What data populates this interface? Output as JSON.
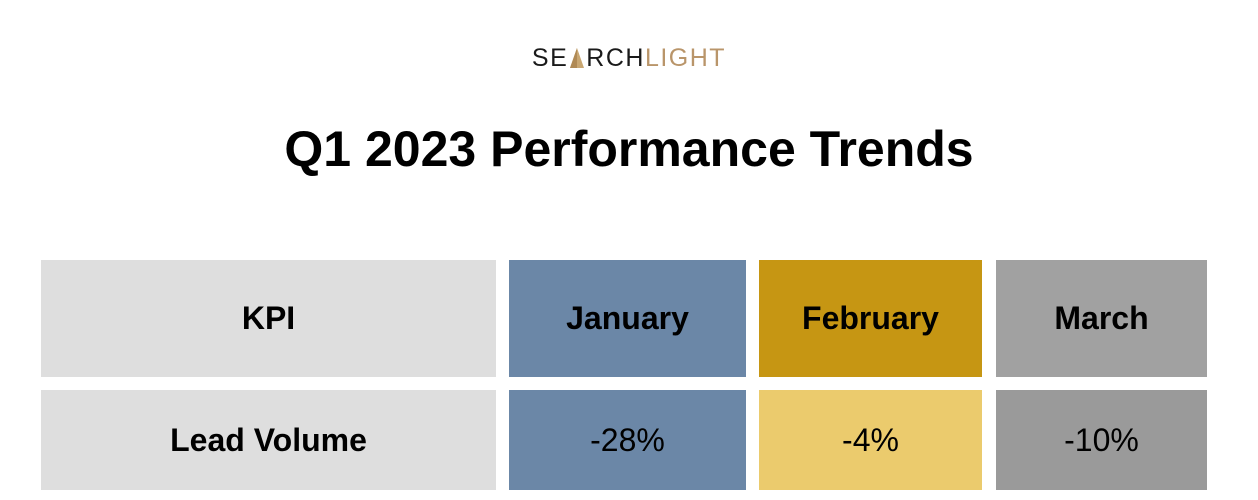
{
  "logo": {
    "part1": "SE",
    "part2": "RCH",
    "part3": "LIGHT"
  },
  "title": "Q1 2023 Performance Trends",
  "table": {
    "header": [
      "KPI",
      "January",
      "February",
      "March"
    ],
    "rows": [
      [
        "Lead Volume",
        "-28%",
        "-4%",
        "-10%"
      ]
    ]
  }
}
